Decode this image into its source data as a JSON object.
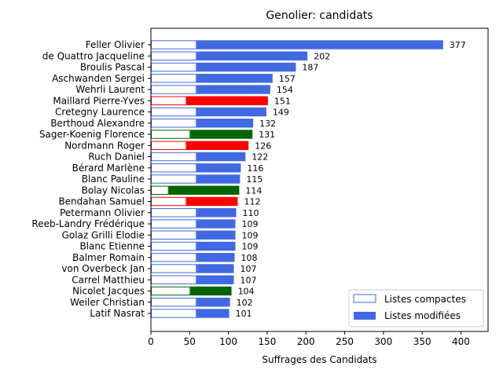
{
  "chart_data": {
    "type": "bar",
    "orientation": "horizontal",
    "title": "Genolier: candidats",
    "xlabel": "Suffrages des Candidats",
    "ylabel": "",
    "xlim": [
      0,
      435
    ],
    "xticks": [
      "0",
      "50",
      "100",
      "150",
      "200",
      "250",
      "300",
      "350",
      "400"
    ],
    "legend_position": "lower-right",
    "legend": [
      {
        "label": "Listes compactes",
        "style": "outline",
        "color": "#4169e1"
      },
      {
        "label": "Listes modifiées",
        "style": "filled",
        "color": "#4169e1"
      }
    ],
    "colors": {
      "blue": "#4169e1",
      "red": "#ff0000",
      "green": "#006400"
    },
    "candidates": [
      {
        "name": "Feller Olivier",
        "total": 377,
        "compact": 59,
        "color": "blue"
      },
      {
        "name": "de Quattro Jacqueline",
        "total": 202,
        "compact": 59,
        "color": "blue"
      },
      {
        "name": "Broulis Pascal",
        "total": 187,
        "compact": 59,
        "color": "blue"
      },
      {
        "name": "Aschwanden Sergei",
        "total": 157,
        "compact": 59,
        "color": "blue"
      },
      {
        "name": "Wehrli Laurent",
        "total": 154,
        "compact": 59,
        "color": "blue"
      },
      {
        "name": "Maillard Pierre-Yves",
        "total": 151,
        "compact": 46,
        "color": "red"
      },
      {
        "name": "Cretegny Laurence",
        "total": 149,
        "compact": 59,
        "color": "blue"
      },
      {
        "name": "Berthoud Alexandre",
        "total": 132,
        "compact": 59,
        "color": "blue"
      },
      {
        "name": "Sager-Koenig Florence",
        "total": 131,
        "compact": 51,
        "color": "green"
      },
      {
        "name": "Nordmann Roger",
        "total": 126,
        "compact": 46,
        "color": "red"
      },
      {
        "name": "Ruch Daniel",
        "total": 122,
        "compact": 59,
        "color": "blue"
      },
      {
        "name": "Bérard Marlène",
        "total": 116,
        "compact": 59,
        "color": "blue"
      },
      {
        "name": "Blanc Pauline",
        "total": 115,
        "compact": 59,
        "color": "blue"
      },
      {
        "name": "Bolay Nicolas",
        "total": 114,
        "compact": 23,
        "color": "green"
      },
      {
        "name": "Bendahan Samuel",
        "total": 112,
        "compact": 46,
        "color": "red"
      },
      {
        "name": "Petermann Olivier",
        "total": 110,
        "compact": 59,
        "color": "blue"
      },
      {
        "name": "Reeb-Landry Frédérique",
        "total": 109,
        "compact": 59,
        "color": "blue"
      },
      {
        "name": "Golaz Grilli Elodie",
        "total": 109,
        "compact": 59,
        "color": "blue"
      },
      {
        "name": "Blanc Etienne",
        "total": 109,
        "compact": 59,
        "color": "blue"
      },
      {
        "name": "Balmer Romain",
        "total": 108,
        "compact": 59,
        "color": "blue"
      },
      {
        "name": "von Overbeck Jan",
        "total": 107,
        "compact": 59,
        "color": "blue"
      },
      {
        "name": "Carrel Matthieu",
        "total": 107,
        "compact": 59,
        "color": "blue"
      },
      {
        "name": "Nicolet Jacques",
        "total": 104,
        "compact": 51,
        "color": "green"
      },
      {
        "name": "Weiler Christian",
        "total": 102,
        "compact": 59,
        "color": "blue"
      },
      {
        "name": "Latif Nasrat",
        "total": 101,
        "compact": 59,
        "color": "blue"
      }
    ]
  }
}
